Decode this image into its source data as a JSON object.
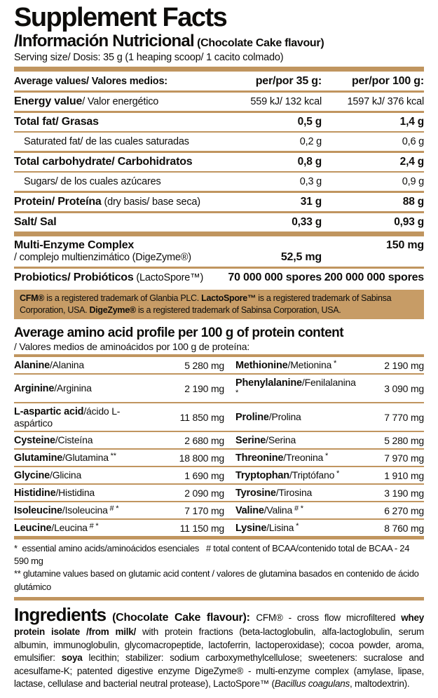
{
  "header": {
    "title": "Supplement Facts",
    "subtitle": "/Información Nutricional",
    "flavour_note": "(Chocolate Cake flavour)",
    "serving": "Serving size/ Dosis: 35 g (1 heaping scoop/ 1 cacito colmado)"
  },
  "colors": {
    "tan_rule": "#c0955f",
    "note_box_bg": "#c79c66",
    "text": "#0e0d0b",
    "background": "#ffffff"
  },
  "nutrition": {
    "col_label": "Average values/ Valores medios:",
    "col_35": "per/por 35 g:",
    "col_100": "per/por 100 g:",
    "rows": [
      {
        "bold": "Energy value",
        "rest": "/ Valor energético",
        "v35": "559 kJ/ 132 kcal",
        "v100": "1597 kJ/ 376 kcal",
        "sub": false,
        "bold_vals": false
      },
      {
        "bold": "Total fat/ Grasas",
        "rest": "",
        "v35": "0,5 g",
        "v100": "1,4 g",
        "sub": false,
        "bold_vals": true
      },
      {
        "bold": "",
        "rest": "Saturated fat/ de las cuales saturadas",
        "v35": "0,2 g",
        "v100": "0,6 g",
        "sub": true,
        "bold_vals": false
      },
      {
        "bold": "Total carbohydrate/ Carbohidratos",
        "rest": "",
        "v35": "0,8 g",
        "v100": "2,4 g",
        "sub": false,
        "bold_vals": true
      },
      {
        "bold": "",
        "rest": "Sugars/ de los cuales azúcares",
        "v35": "0,3 g",
        "v100": "0,9 g",
        "sub": true,
        "bold_vals": false
      },
      {
        "bold": "Protein/ Proteína",
        "rest": " (dry basis/ base seca)",
        "v35": "31 g",
        "v100": "88 g",
        "sub": false,
        "bold_vals": true
      },
      {
        "bold": "Salt/ Sal",
        "rest": "",
        "v35": "0,33 g",
        "v100": "0,93 g",
        "sub": false,
        "bold_vals": true
      }
    ]
  },
  "extras": {
    "enzyme": {
      "line1": "Multi-Enzyme Complex",
      "line2": "/ complejo multienzimático (DigeZyme®)",
      "v35": "52,5 mg",
      "v100": "150 mg"
    },
    "probiotics": {
      "bold": "Probiotics/ Probióticos",
      "rest": " (LactoSpore™)",
      "v35": "70 000 000 spores",
      "v100": "200 000 000 spores"
    }
  },
  "trademark_note": [
    {
      "t": "CFM®",
      "b": true
    },
    {
      "t": " is a registered trademark of Glanbia PLC. "
    },
    {
      "t": "LactoSpore™",
      "b": true
    },
    {
      "t": " is a registered trademark of Sabinsa Corporation, USA. "
    },
    {
      "t": "DigeZyme®",
      "b": true
    },
    {
      "t": " is a registered trademark of Sabinsa Corporation, USA."
    }
  ],
  "amino": {
    "title": "Average amino acid profile per 100 g of protein content",
    "subtitle": "/ Valores medios de aminoácidos por 100 g de proteína:",
    "left": [
      {
        "en": "Alanine",
        "es": "/Alanina",
        "mark": "",
        "val": "5 280 mg"
      },
      {
        "en": "Arginine",
        "es": "/Arginina",
        "mark": "",
        "val": "2 190 mg"
      },
      {
        "en": "L-aspartic acid",
        "es": "/ácido L-aspártico",
        "mark": "",
        "val": "11 850 mg"
      },
      {
        "en": "Cysteine",
        "es": "/Cisteína",
        "mark": "",
        "val": "2 680 mg"
      },
      {
        "en": "Glutamine",
        "es": "/Glutamina",
        "mark": "**",
        "val": "18 800 mg"
      },
      {
        "en": "Glycine",
        "es": "/Glicina",
        "mark": "",
        "val": "1 690 mg"
      },
      {
        "en": "Histidine",
        "es": "/Histidina",
        "mark": "",
        "val": "2 090 mg"
      },
      {
        "en": "Isoleucine",
        "es": "/Isoleucina",
        "mark": "# *",
        "val": "7 170 mg"
      },
      {
        "en": "Leucine",
        "es": "/Leucina",
        "mark": "# *",
        "val": "11 150 mg"
      }
    ],
    "right": [
      {
        "en": "Methionine",
        "es": "/Metionina",
        "mark": "*",
        "val": "2 190 mg"
      },
      {
        "en": "Phenylalanine",
        "es": "/Fenilalanina",
        "mark": "*",
        "val": "3 090 mg"
      },
      {
        "en": "Proline",
        "es": "/Prolina",
        "mark": "",
        "val": "7 770 mg"
      },
      {
        "en": "Serine",
        "es": "/Serina",
        "mark": "",
        "val": "5 280 mg"
      },
      {
        "en": "Threonine",
        "es": "/Treonina",
        "mark": "*",
        "val": "7 970 mg"
      },
      {
        "en": "Tryptophan",
        "es": "/Triptófano",
        "mark": "*",
        "val": "1 910 mg"
      },
      {
        "en": "Tyrosine",
        "es": "/Tirosina",
        "mark": "",
        "val": "3 190 mg"
      },
      {
        "en": "Valine",
        "es": "/Valina",
        "mark": "# *",
        "val": "6 270 mg"
      },
      {
        "en": "Lysine",
        "es": "/Lisina",
        "mark": "*",
        "val": "8 760 mg"
      }
    ]
  },
  "footnotes": [
    "*  essential amino acids/aminoácidos esenciales   # total content of BCAA/contenido total de BCAA - 24 590 mg",
    "** glutamine values based on glutamic acid content / valores de glutamina basados en contenido de ácido glutámico"
  ],
  "ingredients": {
    "title": "Ingredients",
    "flavour": " (Chocolate Cake flavour): ",
    "segments": [
      {
        "t": "CFM® - cross flow microfiltered "
      },
      {
        "t": "whey protein isolate /from milk/",
        "b": true
      },
      {
        "t": " with protein fractions (beta-lactoglobulin, alfa-lactoglobulin, serum albumin, immunoglobulin, glycomacropeptide, lactoferrin, lactoperoxidase); cocoa powder, aroma, emulsifier: "
      },
      {
        "t": "soya",
        "b": true
      },
      {
        "t": " lecithin; stabilizer: sodium carboxymethylcellulose; sweeteners: sucralose and acesulfame-K; patented digestive enzyme DigeZyme® - multi-enzyme complex (amylase, lipase, lactase, cellulase and bacterial neutral protease), LactoSpore™ ("
      },
      {
        "t": "Bacillus coagulans",
        "i": true
      },
      {
        "t": ", maltodextrin)."
      }
    ]
  }
}
